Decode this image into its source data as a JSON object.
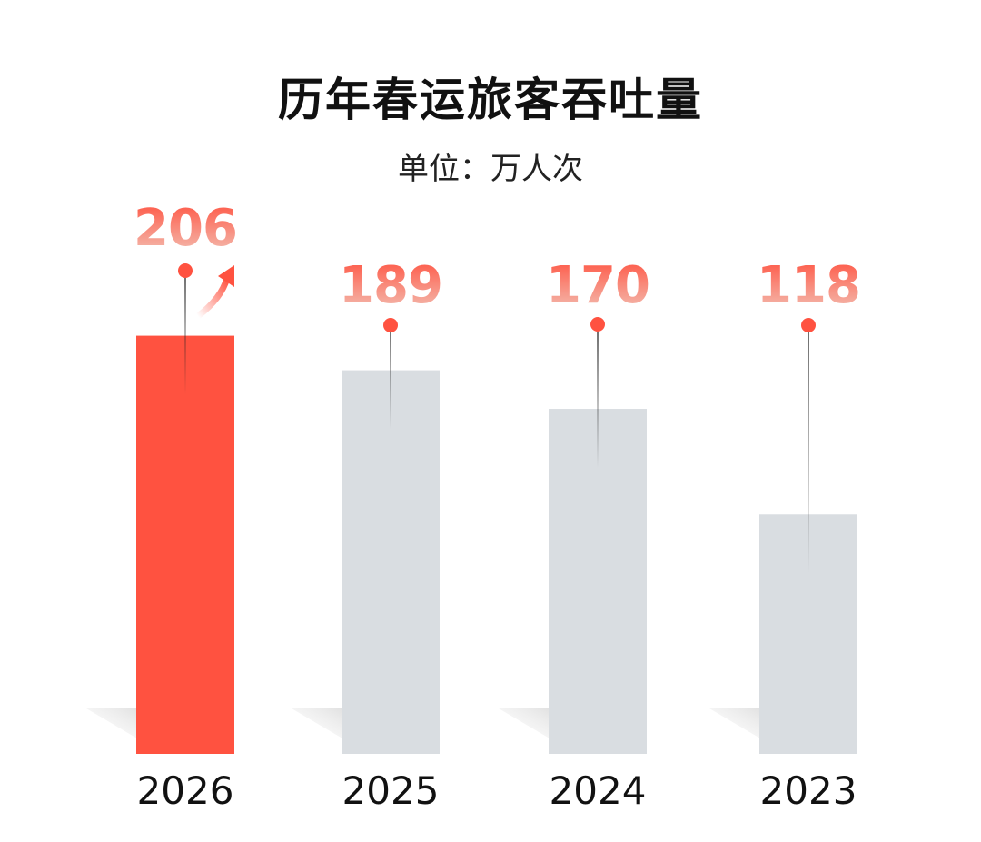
{
  "chart_data": {
    "type": "bar",
    "title": "历年春运旅客吞吐量",
    "subtitle": "单位：万人次",
    "categories": [
      "2026",
      "2025",
      "2024",
      "2023"
    ],
    "values": [
      206,
      189,
      170,
      118
    ],
    "highlight_index": 0,
    "highlight_marker": "up-arrow-icon",
    "colors": {
      "highlight": "#FF5240",
      "bar": "#D9DDE1",
      "label_top": "#FF5240",
      "label_bottom": "#F2C4B8",
      "marker": "#FF5240",
      "axis_text": "#111111"
    }
  }
}
